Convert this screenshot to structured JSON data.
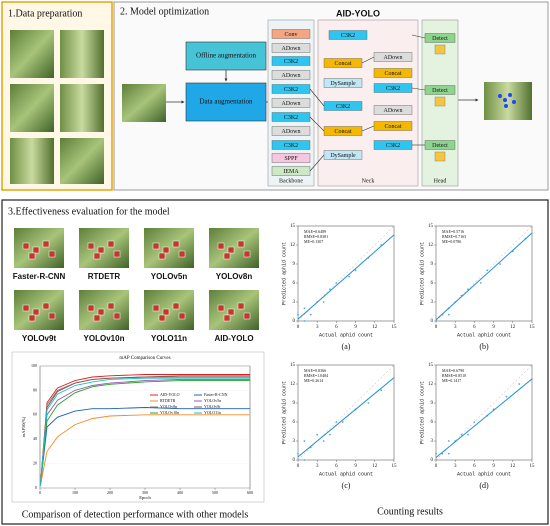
{
  "section1": {
    "title": "1.Data preparation"
  },
  "section2": {
    "title": "2. Model optimization",
    "offline": "Offline augmentation",
    "data_aug": "Data augmentation",
    "model_title": "AID-YOLO",
    "backbone": {
      "label": "Backbone",
      "blocks": [
        {
          "label": "Conv",
          "color": "#f4a582"
        },
        {
          "label": "ADown",
          "color": "#dcdcdc"
        },
        {
          "label": "C3K2",
          "color": "#2ec6f0"
        },
        {
          "label": "ADown",
          "color": "#dcdcdc"
        },
        {
          "label": "C3K2",
          "color": "#2ec6f0"
        },
        {
          "label": "ADown",
          "color": "#dcdcdc"
        },
        {
          "label": "C3K2",
          "color": "#2ec6f0"
        },
        {
          "label": "ADown",
          "color": "#dcdcdc"
        },
        {
          "label": "C3K2",
          "color": "#2ec6f0"
        },
        {
          "label": "SPPF",
          "color": "#f7c6e0"
        },
        {
          "label": "IEMA",
          "color": "#cde8c5"
        }
      ]
    },
    "neck": {
      "label": "Neck",
      "blocks": [
        {
          "label": "C3K2",
          "color": "#2ec6f0"
        },
        {
          "label": "Concat",
          "color": "#f5b800"
        },
        {
          "label": "DySample",
          "color": "#bfe7f5"
        },
        {
          "label": "C3K2",
          "color": "#2ec6f0"
        },
        {
          "label": "Concat",
          "color": "#f5b800"
        },
        {
          "label": "DySample",
          "color": "#bfe7f5"
        },
        {
          "label": "ADown",
          "color": "#dcdcdc"
        },
        {
          "label": "Concat",
          "color": "#f5b800"
        },
        {
          "label": "C3K2",
          "color": "#2ec6f0"
        },
        {
          "label": "ADown",
          "color": "#dcdcdc"
        },
        {
          "label": "Concat",
          "color": "#f5b800"
        },
        {
          "label": "C3K2",
          "color": "#2ec6f0"
        }
      ]
    },
    "head": {
      "label": "Head",
      "blocks": [
        {
          "label": "Detect",
          "color": "#8ed48e"
        },
        {
          "label": "Detect",
          "color": "#8ed48e"
        },
        {
          "label": "Detect",
          "color": "#8ed48e"
        }
      ]
    }
  },
  "section3": {
    "title": "3.Effectiveness evaluation for the model",
    "models": [
      "Faster-R-CNN",
      "RTDETR",
      "YOLOv5n",
      "YOLOv8n",
      "YOLOv9t",
      "YOLOv10n",
      "YOLO11n",
      "AID-YOLO"
    ],
    "caption": "Comparison of detection performance with other models",
    "chart_data": {
      "type": "line",
      "title": "mAP Comparison Curves",
      "xlabel": "Epoch",
      "ylabel": "mAP50(%)",
      "x": [
        1,
        20,
        50,
        100,
        150,
        200,
        300,
        400,
        500,
        600
      ],
      "xlim": [
        0,
        600
      ],
      "xticks": [
        0,
        100,
        200,
        300,
        400,
        500,
        600
      ],
      "ylim": [
        0,
        100
      ],
      "yticks": [
        0,
        20,
        40,
        60,
        80,
        100
      ],
      "series": [
        {
          "name": "AID-YOLO",
          "color": "#e02020",
          "values": [
            2,
            70,
            82,
            88,
            91,
            92,
            93,
            93,
            93,
            93
          ]
        },
        {
          "name": "Faster-R-CNN",
          "color": "#1f5fbf",
          "values": [
            2,
            50,
            58,
            63,
            65,
            65,
            66,
            65,
            65,
            65
          ]
        },
        {
          "name": "RTDETR",
          "color": "#f28c28",
          "values": [
            2,
            30,
            42,
            52,
            57,
            59,
            60,
            60,
            60,
            60
          ]
        },
        {
          "name": "YOLOv5n",
          "color": "#9b59b6",
          "values": [
            2,
            60,
            72,
            80,
            84,
            86,
            88,
            89,
            89,
            89
          ]
        },
        {
          "name": "YOLOv8n",
          "color": "#7f7f7f",
          "values": [
            2,
            68,
            80,
            86,
            89,
            90,
            91,
            91,
            91,
            91
          ]
        },
        {
          "name": "YOLOv9t",
          "color": "#8c564b",
          "values": [
            2,
            66,
            79,
            86,
            89,
            90,
            91,
            92,
            92,
            92
          ]
        },
        {
          "name": "YOLOv10n",
          "color": "#2ca02c",
          "values": [
            2,
            55,
            68,
            78,
            83,
            85,
            87,
            88,
            88,
            88
          ]
        },
        {
          "name": "YOLO11n",
          "color": "#17becf",
          "values": [
            2,
            64,
            77,
            84,
            87,
            89,
            90,
            90,
            90,
            90
          ]
        }
      ]
    },
    "counting": {
      "caption": "Counting results",
      "xlabel": "Actual aphid count",
      "ylabel": "Predicted aphid count",
      "xlim": [
        0,
        15
      ],
      "ylim": [
        0,
        15
      ],
      "xticks": [
        0,
        3,
        6,
        9,
        12,
        15
      ],
      "yticks": [
        0,
        3,
        6,
        9,
        12,
        15
      ],
      "plots": [
        {
          "label": "(a)",
          "metrics": [
            "MAE=0.6489",
            "RMSE=0.8381",
            "ME=0.1307"
          ],
          "fit": [
            0.3,
            13.6
          ],
          "x": [
            0,
            1,
            1,
            2,
            3,
            4,
            5,
            6,
            8,
            9,
            11,
            13
          ],
          "y": [
            1,
            0,
            2,
            1,
            3,
            3,
            5,
            6,
            7,
            8,
            10,
            12
          ]
        },
        {
          "label": "(b)",
          "metrics": [
            "MAE=0.5716",
            "RMSE=0.7163",
            "ME=0.0786"
          ],
          "fit": [
            0.2,
            13.9
          ],
          "x": [
            0,
            1,
            2,
            2,
            3,
            4,
            5,
            7,
            8,
            10,
            12,
            14
          ],
          "y": [
            0,
            1,
            1,
            2,
            3,
            4,
            5,
            6,
            8,
            9,
            11,
            13
          ]
        },
        {
          "label": "(c)",
          "metrics": [
            "MAE=0.8366",
            "RMSE=1.0484",
            "ME=0.2614"
          ],
          "fit": [
            0.5,
            13.0
          ],
          "x": [
            0,
            1,
            1,
            2,
            3,
            4,
            5,
            6,
            7,
            9,
            11,
            13
          ],
          "y": [
            1,
            0,
            3,
            2,
            4,
            3,
            4,
            6,
            6,
            8,
            9,
            11
          ]
        },
        {
          "label": "(d)",
          "metrics": [
            "MAE=0.6790",
            "RMSE=0.8510",
            "ME=0.1417"
          ],
          "fit": [
            0.4,
            12.8
          ],
          "x": [
            0,
            1,
            2,
            2,
            3,
            4,
            5,
            6,
            8,
            9,
            11,
            13
          ],
          "y": [
            1,
            1,
            1,
            3,
            3,
            4,
            4,
            6,
            7,
            8,
            10,
            12
          ]
        }
      ]
    }
  }
}
